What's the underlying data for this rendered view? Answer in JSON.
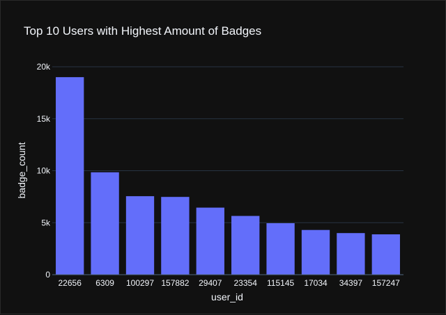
{
  "chart_data": {
    "type": "bar",
    "title": "Top 10 Users with Highest Amount of Badges",
    "xlabel": "user_id",
    "ylabel": "badge_count",
    "categories": [
      "22656",
      "6309",
      "100297",
      "157882",
      "29407",
      "23354",
      "115145",
      "17034",
      "34397",
      "157247"
    ],
    "values": [
      19000,
      9850,
      7550,
      7480,
      6450,
      5650,
      4950,
      4300,
      4000,
      3880
    ],
    "ylim": [
      0,
      20000
    ],
    "yticks": [
      {
        "value": 0,
        "label": "0"
      },
      {
        "value": 5000,
        "label": "5k"
      },
      {
        "value": 10000,
        "label": "10k"
      },
      {
        "value": 15000,
        "label": "15k"
      },
      {
        "value": 20000,
        "label": "20k"
      }
    ],
    "grid": true,
    "colors": {
      "bar": "#636efa",
      "background": "#111111",
      "text": "#f2f5fa",
      "grid": "#283442"
    }
  }
}
